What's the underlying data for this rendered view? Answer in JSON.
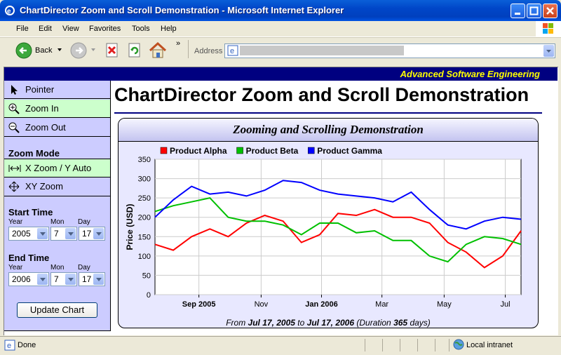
{
  "window": {
    "title": "ChartDirector Zoom and Scroll Demonstration - Microsoft Internet Explorer"
  },
  "menu": [
    "File",
    "Edit",
    "View",
    "Favorites",
    "Tools",
    "Help"
  ],
  "toolbar": {
    "back_label": "Back",
    "address_label": "Address"
  },
  "banner": {
    "text": "Advanced Software Engineering"
  },
  "left_panel": {
    "pointer": "Pointer",
    "zoom_in": "Zoom In",
    "zoom_out": "Zoom Out",
    "zoom_mode": "Zoom Mode",
    "x_zoom": "X Zoom / Y Auto",
    "xy_zoom": "XY Zoom",
    "start_time": "Start Time",
    "end_time": "End Time",
    "year_label": "Year",
    "mon_label": "Mon",
    "day_label": "Day",
    "start": {
      "year": "2005",
      "mon": "7",
      "day": "17"
    },
    "end": {
      "year": "2006",
      "mon": "7",
      "day": "17"
    },
    "update_button": "Update Chart"
  },
  "page_title": "ChartDirector Zoom and Scroll Demonstration",
  "chart_title": "Zooming and Scrolling Demonstration",
  "chart_footer": {
    "from_prefix": "From",
    "start": "Jul 17, 2005",
    "to": "to",
    "end": "Jul 17, 2006",
    "dur_prefix": "(Duration",
    "days": "365",
    "dur_suffix": "days)"
  },
  "status": {
    "left": "Done",
    "zone": "Local intranet"
  },
  "colors": {
    "alpha": "#FF0000",
    "beta": "#00C000",
    "gamma": "#0000FF",
    "banner": "#000080",
    "highlight": "#CCFFCC"
  },
  "chart_data": {
    "type": "line",
    "title": "Zooming and Scrolling Demonstration",
    "ylabel": "Price (USD)",
    "xlabel": "",
    "ylim": [
      0,
      350
    ],
    "yticks": [
      0,
      50,
      100,
      150,
      200,
      250,
      300,
      350
    ],
    "xticks": [
      {
        "label": "Sep 2005",
        "pos": 0.12,
        "bold": true
      },
      {
        "label": "Nov",
        "pos": 0.29,
        "bold": false
      },
      {
        "label": "Jan 2006",
        "pos": 0.455,
        "bold": true
      },
      {
        "label": "Mar",
        "pos": 0.62,
        "bold": false
      },
      {
        "label": "May",
        "pos": 0.79,
        "bold": false
      },
      {
        "label": "Jul",
        "pos": 0.957,
        "bold": false
      }
    ],
    "x": [
      0,
      0.05,
      0.1,
      0.15,
      0.2,
      0.25,
      0.3,
      0.35,
      0.4,
      0.45,
      0.5,
      0.55,
      0.6,
      0.65,
      0.7,
      0.75,
      0.8,
      0.85,
      0.9,
      0.95,
      1.0
    ],
    "grid": true,
    "legend_position": "top-left",
    "series": [
      {
        "name": "Product Alpha",
        "values": [
          130,
          115,
          150,
          170,
          150,
          185,
          205,
          190,
          135,
          155,
          210,
          205,
          220,
          200,
          200,
          185,
          135,
          110,
          70,
          100,
          165
        ]
      },
      {
        "name": "Product Beta",
        "values": [
          215,
          230,
          240,
          250,
          200,
          190,
          190,
          180,
          155,
          185,
          185,
          160,
          165,
          140,
          140,
          100,
          85,
          130,
          150,
          145,
          130
        ]
      },
      {
        "name": "Product Gamma",
        "values": [
          200,
          245,
          280,
          260,
          265,
          255,
          270,
          295,
          290,
          270,
          260,
          255,
          250,
          240,
          265,
          220,
          180,
          170,
          190,
          200,
          195
        ]
      }
    ]
  }
}
